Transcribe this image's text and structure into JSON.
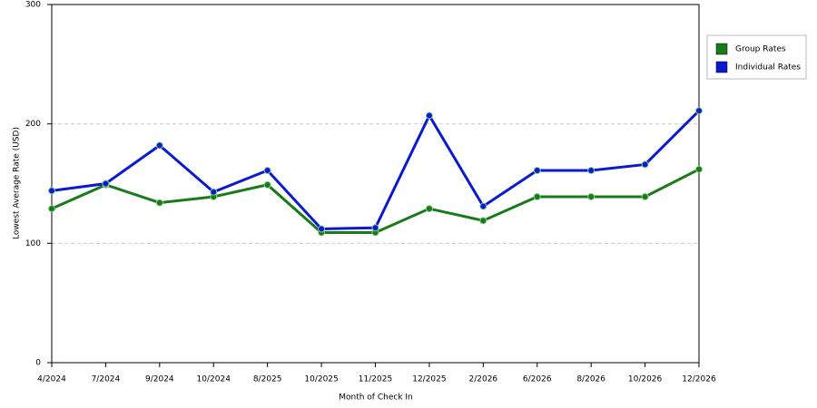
{
  "chart_data": {
    "type": "line",
    "x_label": "Month of Check In",
    "y_label": "Lowest Average Rate (USD)",
    "categories": [
      "4/2024",
      "7/2024",
      "9/2024",
      "10/2024",
      "8/2025",
      "10/2025",
      "11/2025",
      "12/2025",
      "2/2026",
      "6/2026",
      "8/2026",
      "10/2026",
      "12/2026"
    ],
    "series": [
      {
        "name": "Group Rates",
        "color": "#1a7a1a",
        "values": [
          129,
          149,
          134,
          139,
          149,
          109,
          109,
          129,
          119,
          139,
          139,
          139,
          162
        ]
      },
      {
        "name": "Individual Rates",
        "color": "#0a1ad0",
        "values": [
          144,
          150,
          182,
          143,
          161,
          112,
          113,
          207,
          131,
          161,
          161,
          166,
          211
        ]
      }
    ],
    "ylim": [
      0,
      300
    ],
    "yticks": [
      0,
      100,
      200,
      300
    ],
    "grid": true,
    "legend": "right"
  }
}
